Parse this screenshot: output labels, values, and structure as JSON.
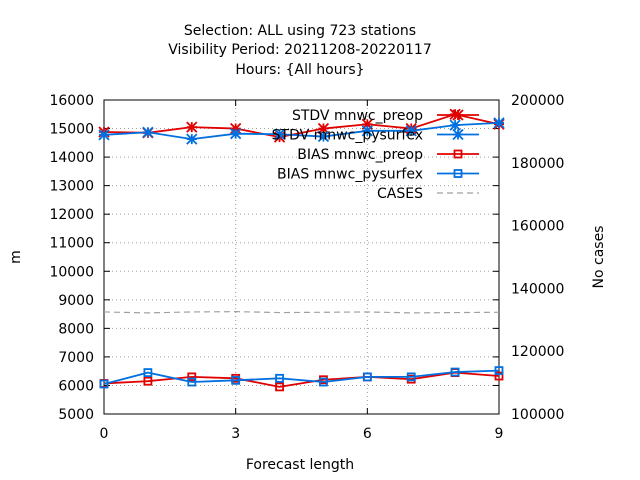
{
  "chart_data": {
    "type": "line",
    "title_lines": [
      "Selection: ALL using   723 stations",
      "Visibility   Period: 20211208-20220117",
      "Hours: {All hours}"
    ],
    "xlabel": "Forecast length",
    "ylabel": "m",
    "y2label": "No cases",
    "xlim": [
      0,
      9
    ],
    "ylim": [
      5000,
      16000
    ],
    "y2lim": [
      100000,
      200000
    ],
    "xticks": [
      0,
      3,
      6,
      9
    ],
    "yticks": [
      5000,
      6000,
      7000,
      8000,
      9000,
      10000,
      11000,
      12000,
      13000,
      14000,
      15000,
      16000
    ],
    "y2ticks": [
      100000,
      120000,
      140000,
      160000,
      180000,
      200000
    ],
    "grid": true,
    "legend_position": "top-right",
    "x": [
      0,
      1,
      2,
      3,
      4,
      5,
      6,
      7,
      8,
      9
    ],
    "series": [
      {
        "name": "STDV mnwc_preop",
        "axis": "y",
        "color": "#e00000",
        "marker": "star",
        "dash": "",
        "values": [
          14880,
          14850,
          15050,
          15000,
          14700,
          15000,
          15150,
          15000,
          15500,
          15150
        ]
      },
      {
        "name": "STDV mnwc_pysurfex",
        "axis": "y",
        "color": "#0070e0",
        "marker": "star",
        "dash": "",
        "values": [
          14780,
          14870,
          14630,
          14820,
          14800,
          14720,
          14920,
          14920,
          15120,
          15200
        ]
      },
      {
        "name": "BIAS mnwc_preop",
        "axis": "y",
        "color": "#e00000",
        "marker": "square",
        "dash": "",
        "values": [
          6070,
          6150,
          6300,
          6250,
          5950,
          6200,
          6300,
          6220,
          6450,
          6330
        ]
      },
      {
        "name": "BIAS mnwc_pysurfex",
        "axis": "y",
        "color": "#0070e0",
        "marker": "square",
        "dash": "",
        "values": [
          6050,
          6450,
          6120,
          6180,
          6250,
          6120,
          6300,
          6300,
          6470,
          6520
        ]
      },
      {
        "name": "CASES",
        "axis": "y2",
        "color": "#a0a0a0",
        "marker": "none",
        "dash": "6 4",
        "values": [
          132500,
          132200,
          132500,
          132600,
          132300,
          132400,
          132500,
          132200,
          132300,
          132400
        ]
      }
    ]
  }
}
